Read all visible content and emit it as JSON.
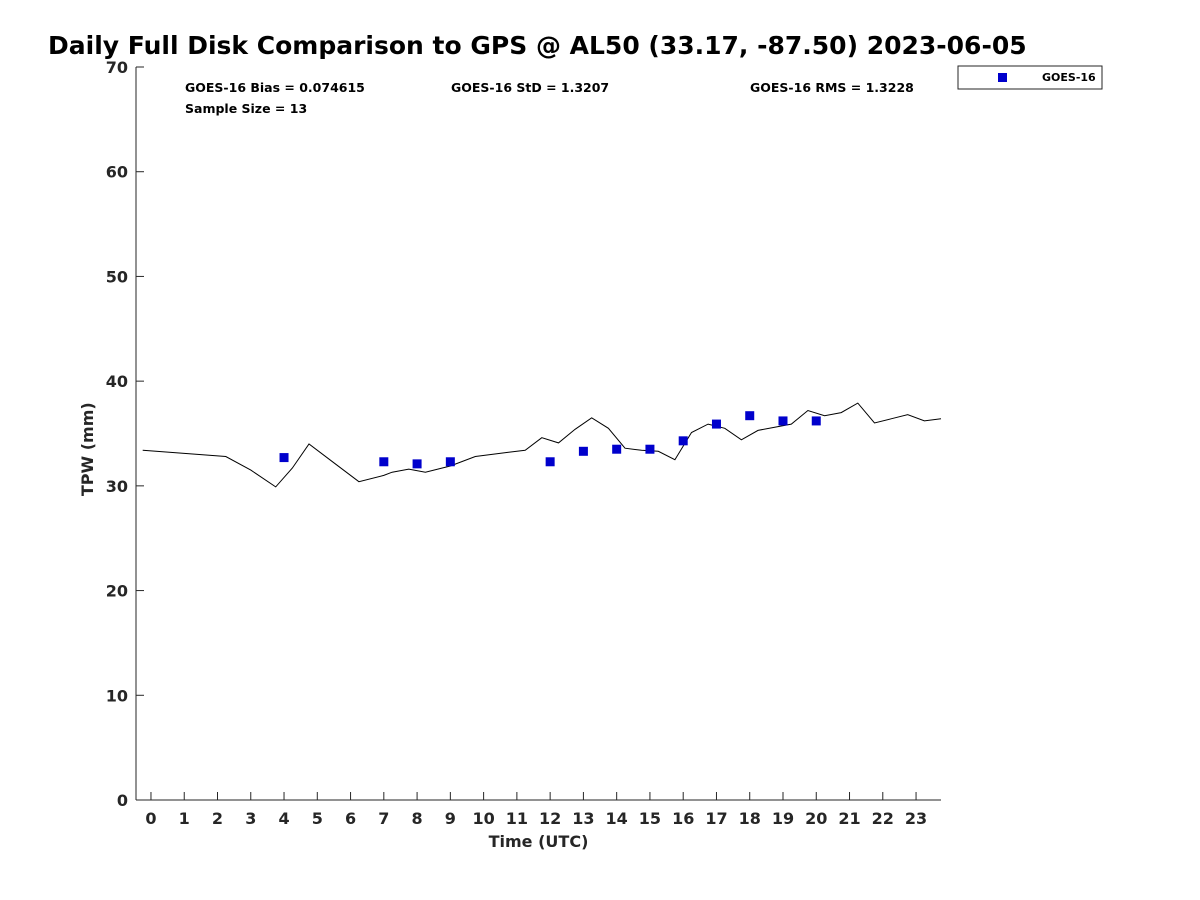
{
  "chart_data": {
    "type": "scatter",
    "title": "Daily Full Disk Comparison to GPS @ AL50 (33.17, -87.50) 2023-06-05",
    "xlabel": "Time (UTC)",
    "ylabel": "TPW (mm)",
    "xlim": [
      -0.45,
      23.75
    ],
    "ylim": [
      0,
      70
    ],
    "xticks": [
      "0",
      "1",
      "2",
      "3",
      "4",
      "5",
      "6",
      "7",
      "8",
      "9",
      "10",
      "11",
      "12",
      "13",
      "14",
      "15",
      "16",
      "17",
      "18",
      "19",
      "20",
      "21",
      "22",
      "23"
    ],
    "yticks": [
      "0",
      "10",
      "20",
      "30",
      "40",
      "50",
      "60",
      "70"
    ],
    "grid": false,
    "legend_position": "outside-top-right",
    "stats": {
      "bias": "GOES-16 Bias = 0.074615",
      "std": "GOES-16 StD = 1.3207",
      "rms": "GOES-16 RMS = 1.3228",
      "sample": "Sample Size = 13"
    },
    "series": [
      {
        "name": "GOES-16",
        "kind": "scatter",
        "marker": "square",
        "color": "#0000cc",
        "x": [
          4,
          7,
          8,
          9,
          12,
          13,
          14,
          15,
          16,
          17,
          18,
          19,
          20
        ],
        "y": [
          32.7,
          32.3,
          32.1,
          32.3,
          32.3,
          33.3,
          33.5,
          33.5,
          34.3,
          35.9,
          36.7,
          36.2,
          36.2
        ]
      },
      {
        "kind": "line",
        "color": "#000000",
        "x": [
          -0.25,
          2.25,
          3.0,
          3.75,
          4.25,
          4.75,
          5.5,
          6.25,
          7.0,
          7.25,
          7.75,
          8.25,
          9.0,
          9.75,
          10.75,
          11.25,
          11.75,
          12.25,
          12.75,
          13.25,
          13.75,
          14.25,
          14.75,
          15.25,
          15.75,
          16.25,
          16.75,
          17.25,
          17.75,
          18.25,
          18.75,
          19.25,
          19.75,
          20.25,
          20.75,
          21.25,
          21.75,
          22.25,
          22.75,
          23.25,
          23.75
        ],
        "y": [
          33.4,
          32.8,
          31.5,
          29.9,
          31.7,
          34.0,
          32.2,
          30.4,
          31.0,
          31.3,
          31.6,
          31.3,
          31.9,
          32.8,
          33.2,
          33.4,
          34.6,
          34.1,
          35.4,
          36.5,
          35.5,
          33.6,
          33.4,
          33.3,
          32.5,
          35.1,
          35.9,
          35.5,
          34.4,
          35.3,
          35.6,
          35.9,
          37.2,
          36.7,
          37.0,
          37.9,
          36.0,
          36.4,
          36.8,
          36.2,
          36.4
        ]
      }
    ]
  }
}
